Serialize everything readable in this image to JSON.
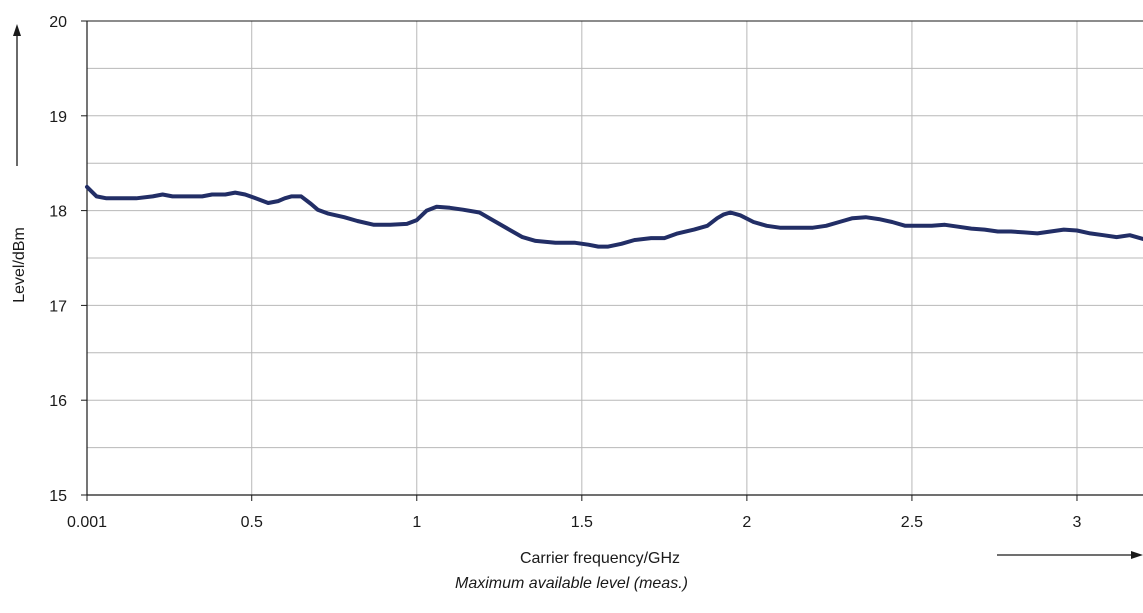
{
  "chart_data": {
    "type": "line",
    "title": "",
    "caption": "Maximum available level (meas.)",
    "xlabel": "Carrier frequency/GHz",
    "ylabel": "Level/dBm",
    "xlim": [
      0.001,
      3.2
    ],
    "ylim": [
      15,
      20
    ],
    "x_ticks": [
      {
        "value": 0.001,
        "label": "0.001"
      },
      {
        "value": 0.5,
        "label": "0.5"
      },
      {
        "value": 1,
        "label": "1"
      },
      {
        "value": 1.5,
        "label": "1.5"
      },
      {
        "value": 2,
        "label": "2"
      },
      {
        "value": 2.5,
        "label": "2.5"
      },
      {
        "value": 3,
        "label": "3"
      }
    ],
    "y_ticks": [
      {
        "value": 15,
        "label": "15"
      },
      {
        "value": 16,
        "label": "16"
      },
      {
        "value": 17,
        "label": "17"
      },
      {
        "value": 18,
        "label": "18"
      },
      {
        "value": 19,
        "label": "19"
      },
      {
        "value": 20,
        "label": "20"
      }
    ],
    "grid": true,
    "colors": {
      "line": "#222e66",
      "grid": "#b8b8b8",
      "axis": "#1a1a1a"
    },
    "series": [
      {
        "x": [
          0.001,
          0.03,
          0.06,
          0.1,
          0.15,
          0.2,
          0.23,
          0.26,
          0.3,
          0.35,
          0.38,
          0.42,
          0.45,
          0.48,
          0.52,
          0.55,
          0.58,
          0.6,
          0.62,
          0.65,
          0.68,
          0.7,
          0.73,
          0.78,
          0.82,
          0.87,
          0.92,
          0.97,
          1.0,
          1.03,
          1.06,
          1.1,
          1.14,
          1.19,
          1.23,
          1.28,
          1.32,
          1.36,
          1.42,
          1.48,
          1.52,
          1.55,
          1.58,
          1.62,
          1.66,
          1.71,
          1.75,
          1.79,
          1.84,
          1.88,
          1.91,
          1.93,
          1.95,
          1.98,
          2.02,
          2.06,
          2.1,
          2.15,
          2.2,
          2.24,
          2.28,
          2.32,
          2.36,
          2.4,
          2.44,
          2.48,
          2.52,
          2.56,
          2.6,
          2.64,
          2.68,
          2.72,
          2.76,
          2.8,
          2.84,
          2.88,
          2.92,
          2.96,
          3.0,
          3.04,
          3.08,
          3.12,
          3.16,
          3.2
        ],
        "y": [
          18.25,
          18.15,
          18.13,
          18.13,
          18.13,
          18.15,
          18.17,
          18.15,
          18.15,
          18.15,
          18.17,
          18.17,
          18.19,
          18.17,
          18.12,
          18.08,
          18.1,
          18.13,
          18.15,
          18.15,
          18.07,
          18.01,
          17.97,
          17.93,
          17.89,
          17.85,
          17.85,
          17.86,
          17.9,
          18.0,
          18.04,
          18.03,
          18.01,
          17.98,
          17.9,
          17.8,
          17.72,
          17.68,
          17.66,
          17.66,
          17.64,
          17.62,
          17.62,
          17.65,
          17.69,
          17.71,
          17.71,
          17.76,
          17.8,
          17.84,
          17.92,
          17.96,
          17.98,
          17.95,
          17.88,
          17.84,
          17.82,
          17.82,
          17.82,
          17.84,
          17.88,
          17.92,
          17.93,
          17.91,
          17.88,
          17.84,
          17.84,
          17.84,
          17.85,
          17.83,
          17.81,
          17.8,
          17.78,
          17.78,
          17.77,
          17.76,
          17.78,
          17.8,
          17.79,
          17.76,
          17.74,
          17.72,
          17.74,
          17.7
        ]
      }
    ]
  }
}
